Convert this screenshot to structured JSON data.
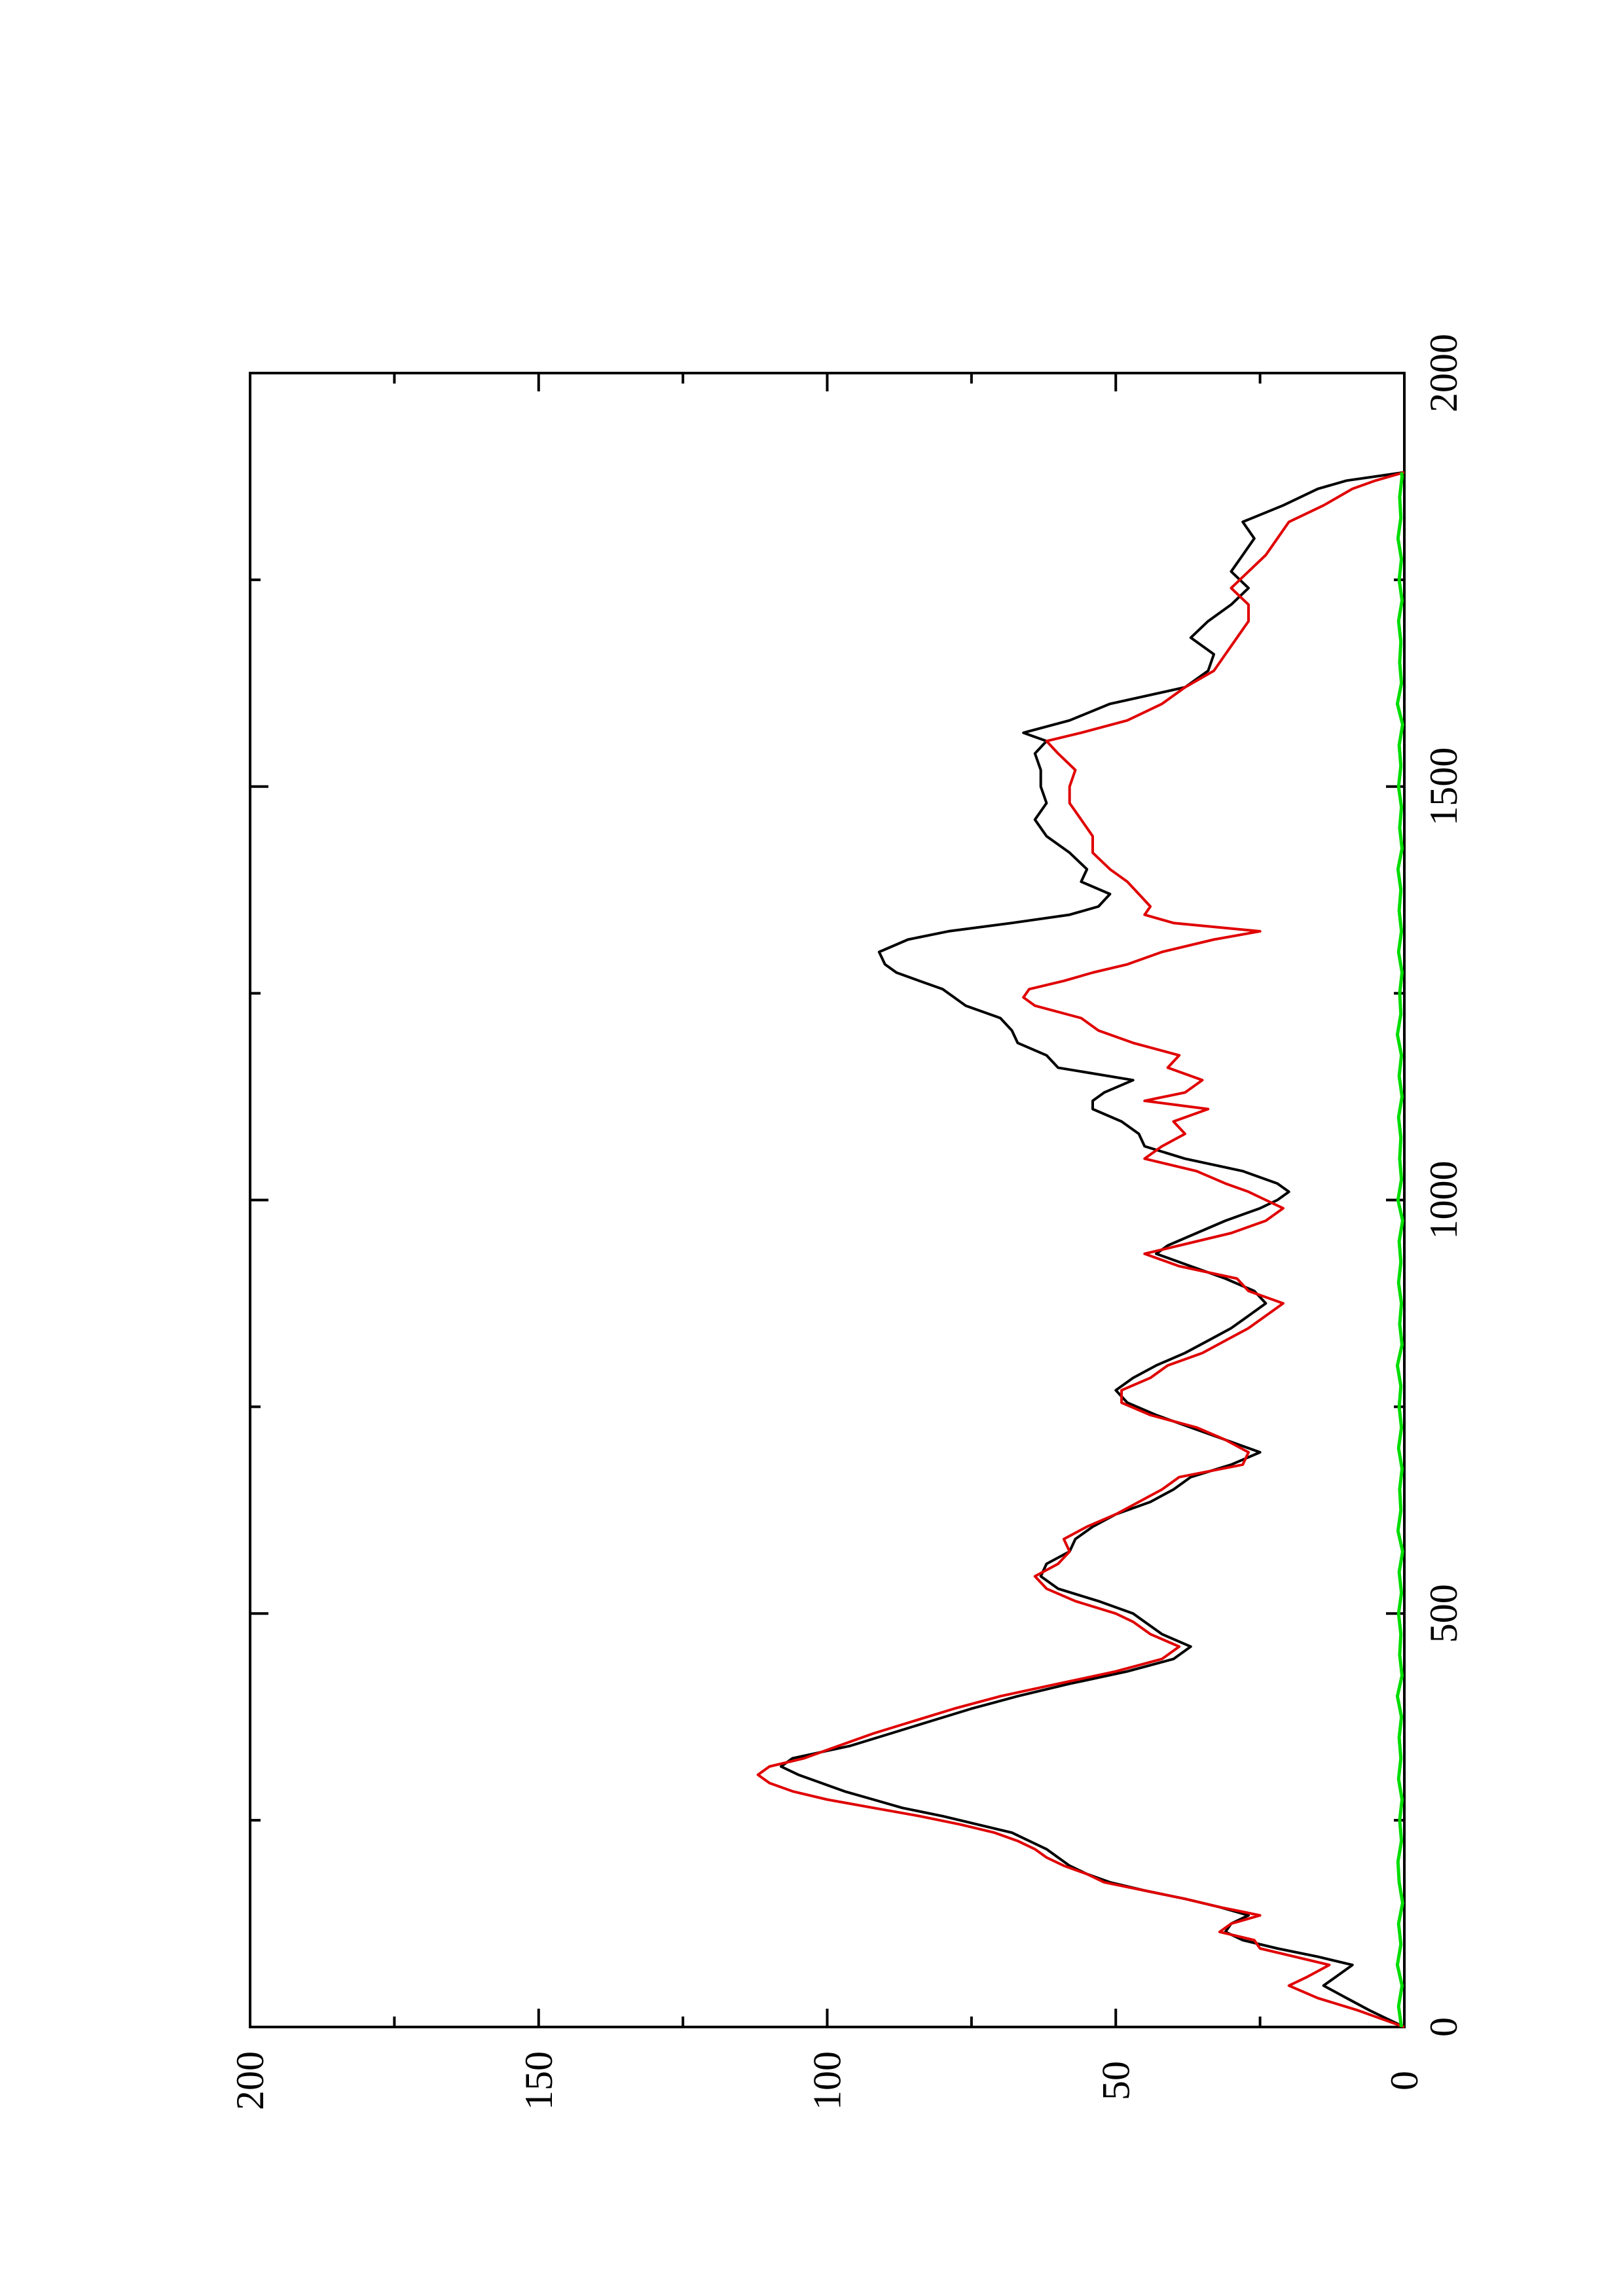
{
  "chart_data": {
    "type": "line",
    "title": "",
    "xlabel": "",
    "ylabel": "",
    "orientation": "rotated 90 degrees counter-clockwise (page in landscape)",
    "xlim": [
      0,
      2000
    ],
    "ylim": [
      0,
      200
    ],
    "x_ticks": [
      0,
      500,
      1000,
      1500,
      2000
    ],
    "x_tick_labels": [
      "0",
      "500",
      "1000",
      "1500",
      "2000"
    ],
    "x_minor_ticks": [
      250,
      750,
      1250,
      1750
    ],
    "y_ticks": [
      0,
      50,
      100,
      150,
      200
    ],
    "y_tick_labels": [
      "0",
      "50",
      "100",
      "150",
      "200"
    ],
    "y_minor_ticks": [
      25,
      75,
      125,
      175
    ],
    "grid": false,
    "legend": "none",
    "colors": {
      "black": "#000000",
      "red": "#e00000",
      "green": "#00dd00"
    },
    "series": [
      {
        "color": "#000000",
        "x": [
          0,
          10,
          20,
          35,
          50,
          60,
          75,
          85,
          95,
          105,
          115,
          125,
          135,
          145,
          155,
          165,
          175,
          185,
          195,
          205,
          215,
          225,
          235,
          245,
          255,
          265,
          275,
          285,
          295,
          305,
          315,
          325,
          340,
          355,
          370,
          385,
          400,
          415,
          430,
          445,
          460,
          475,
          490,
          500,
          515,
          530,
          545,
          560,
          575,
          590,
          605,
          620,
          635,
          650,
          665,
          680,
          695,
          710,
          725,
          740,
          755,
          770,
          785,
          800,
          815,
          830,
          845,
          860,
          875,
          890,
          905,
          920,
          935,
          945,
          960,
          975,
          990,
          1000,
          1010,
          1020,
          1035,
          1050,
          1065,
          1080,
          1095,
          1110,
          1120,
          1130,
          1145,
          1160,
          1175,
          1190,
          1205,
          1220,
          1235,
          1245,
          1255,
          1265,
          1275,
          1285,
          1300,
          1315,
          1325,
          1335,
          1345,
          1355,
          1370,
          1385,
          1400,
          1420,
          1440,
          1460,
          1480,
          1500,
          1520,
          1540,
          1555,
          1565,
          1580,
          1600,
          1620,
          1640,
          1660,
          1680,
          1700,
          1720,
          1740,
          1760,
          1780,
          1800,
          1820,
          1840,
          1860,
          1870,
          1880
        ],
        "y": [
          0,
          3,
          6,
          10,
          14,
          12,
          9,
          15,
          22,
          28,
          31,
          30,
          27,
          32,
          38,
          45,
          51,
          55,
          58,
          60,
          62,
          65,
          68,
          74,
          80,
          87,
          92,
          97,
          101,
          105,
          108,
          106,
          96,
          89,
          82,
          75,
          67,
          58,
          48,
          40,
          37,
          42,
          45,
          47,
          53,
          60,
          63,
          62,
          58,
          57,
          54,
          50,
          44,
          40,
          37,
          30,
          25,
          31,
          37,
          43,
          48,
          50,
          47,
          43,
          38,
          34,
          30,
          27,
          24,
          26,
          31,
          37,
          43,
          41,
          36,
          31,
          25,
          22,
          20,
          22,
          28,
          38,
          45,
          46,
          49,
          54,
          54,
          52,
          47,
          60,
          62,
          67,
          68,
          70,
          76,
          78,
          80,
          84,
          88,
          90,
          91,
          86,
          79,
          68,
          58,
          53,
          51,
          56,
          55,
          58,
          62,
          64,
          62,
          63,
          63,
          64,
          62,
          66,
          58,
          51,
          38,
          34,
          33,
          37,
          34,
          30,
          27,
          30,
          28,
          26,
          28,
          21,
          15,
          10,
          0
        ]
      },
      {
        "color": "#e00000",
        "x": [
          0,
          10,
          20,
          35,
          50,
          60,
          75,
          85,
          95,
          105,
          115,
          125,
          135,
          145,
          155,
          165,
          175,
          185,
          195,
          205,
          215,
          225,
          235,
          245,
          255,
          265,
          275,
          285,
          295,
          305,
          315,
          325,
          340,
          355,
          370,
          385,
          400,
          415,
          430,
          445,
          460,
          475,
          490,
          500,
          515,
          530,
          545,
          560,
          575,
          590,
          605,
          620,
          635,
          650,
          665,
          680,
          695,
          710,
          725,
          740,
          755,
          770,
          785,
          800,
          815,
          830,
          845,
          860,
          875,
          890,
          905,
          920,
          935,
          945,
          960,
          975,
          990,
          1000,
          1010,
          1020,
          1035,
          1050,
          1065,
          1080,
          1095,
          1110,
          1120,
          1130,
          1145,
          1160,
          1175,
          1190,
          1205,
          1220,
          1235,
          1245,
          1255,
          1265,
          1275,
          1285,
          1300,
          1315,
          1325,
          1335,
          1345,
          1355,
          1370,
          1385,
          1400,
          1420,
          1440,
          1460,
          1480,
          1500,
          1520,
          1540,
          1555,
          1565,
          1580,
          1600,
          1620,
          1640,
          1660,
          1680,
          1700,
          1720,
          1740,
          1760,
          1780,
          1800,
          1820,
          1840,
          1860,
          1870,
          1880
        ],
        "y": [
          0,
          4,
          8,
          15,
          20,
          17,
          13,
          19,
          25,
          26,
          32,
          30,
          25,
          32,
          38,
          45,
          52,
          55,
          59,
          62,
          64,
          67,
          71,
          77,
          84,
          92,
          100,
          106,
          110,
          112,
          110,
          104,
          98,
          92,
          85,
          78,
          70,
          60,
          50,
          42,
          39,
          44,
          47,
          50,
          57,
          62,
          64,
          60,
          58,
          59,
          55,
          50,
          46,
          42,
          39,
          28,
          27,
          31,
          36,
          44,
          49,
          49,
          44,
          41,
          35,
          31,
          27,
          24,
          21,
          27,
          29,
          39,
          45,
          39,
          30,
          24,
          21,
          24,
          27,
          31,
          36,
          45,
          42,
          38,
          40,
          34,
          45,
          38,
          35,
          41,
          39,
          47,
          53,
          56,
          64,
          66,
          65,
          59,
          54,
          48,
          42,
          33,
          25,
          40,
          45,
          44,
          46,
          48,
          51,
          54,
          54,
          56,
          58,
          58,
          57,
          60,
          62,
          56,
          48,
          42,
          38,
          33,
          31,
          29,
          27,
          27,
          30,
          27,
          24,
          22,
          20,
          14,
          9,
          5,
          0
        ]
      },
      {
        "color": "#00dd00",
        "x": [
          0,
          25,
          50,
          75,
          100,
          125,
          150,
          175,
          200,
          225,
          250,
          275,
          300,
          325,
          350,
          375,
          400,
          425,
          450,
          475,
          500,
          525,
          550,
          575,
          600,
          625,
          650,
          675,
          700,
          725,
          750,
          775,
          800,
          825,
          850,
          875,
          900,
          925,
          950,
          975,
          1000,
          1025,
          1050,
          1075,
          1100,
          1125,
          1150,
          1175,
          1200,
          1225,
          1250,
          1275,
          1300,
          1325,
          1350,
          1375,
          1400,
          1425,
          1450,
          1475,
          1500,
          1525,
          1550,
          1575,
          1600,
          1625,
          1650,
          1675,
          1700,
          1725,
          1750,
          1775,
          1800,
          1825,
          1850,
          1875,
          1880
        ],
        "y": [
          0.5,
          1.0,
          0.4,
          1.2,
          0.6,
          1.0,
          0.3,
          0.9,
          1.1,
          0.5,
          0.8,
          0.4,
          1.0,
          0.6,
          0.9,
          0.5,
          1.2,
          0.4,
          0.8,
          0.6,
          1.0,
          0.5,
          0.9,
          0.3,
          1.1,
          0.6,
          0.8,
          0.4,
          1.0,
          0.5,
          0.9,
          0.6,
          1.2,
          0.4,
          0.8,
          0.5,
          1.0,
          0.6,
          0.9,
          0.3,
          1.1,
          0.5,
          0.8,
          0.6,
          1.0,
          0.4,
          0.9,
          0.5,
          1.2,
          0.6,
          0.8,
          0.4,
          1.0,
          0.5,
          0.9,
          0.6,
          1.1,
          0.4,
          0.8,
          0.5,
          1.0,
          0.6,
          0.9,
          0.3,
          1.2,
          0.5,
          0.8,
          0.6,
          1.0,
          0.4,
          0.9,
          0.5,
          1.1,
          0.6,
          0.8,
          0.4,
          0.5
        ]
      }
    ]
  }
}
